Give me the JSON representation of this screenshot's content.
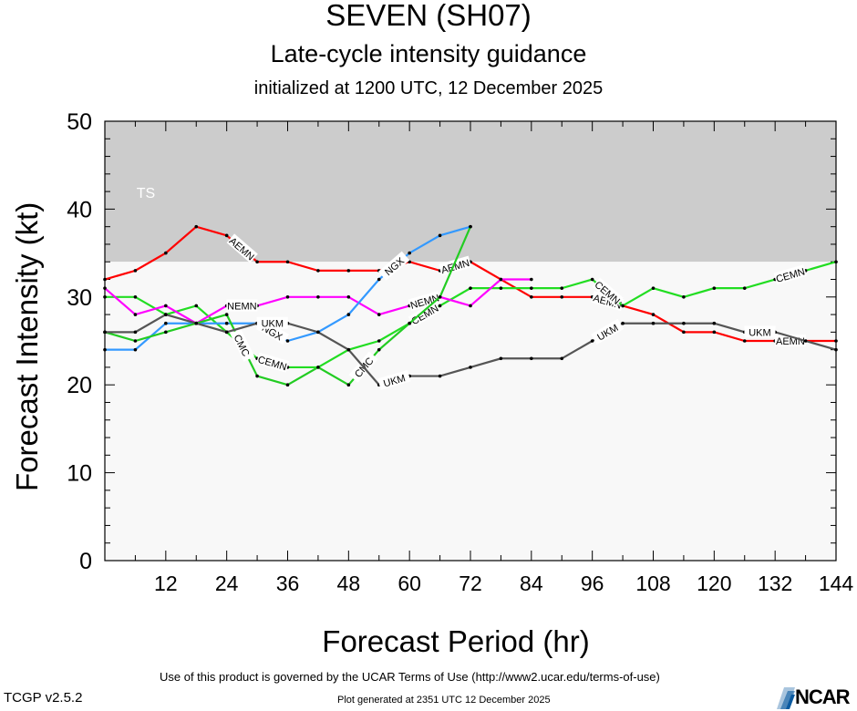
{
  "header": {
    "title": "SEVEN (SH07)",
    "subtitle": "Late-cycle intensity guidance",
    "initialized": "initialized at 1200 UTC, 12 December 2025"
  },
  "footer": {
    "terms": "Use of this product is governed by the UCAR Terms of Use (http://www2.ucar.edu/terms-of-use)",
    "version": "TCGP v2.5.2",
    "generated": "Plot generated at 2351 UTC   12 December 2025",
    "logo_text": "NCAR"
  },
  "chart_data": {
    "type": "line",
    "xlabel": "Forecast Period (hr)",
    "ylabel": "Forecast Intensity (kt)",
    "xlim": [
      0,
      144
    ],
    "ylim": [
      0,
      50
    ],
    "xticks": [
      12,
      24,
      36,
      48,
      60,
      72,
      84,
      96,
      108,
      120,
      132,
      144
    ],
    "yticks": [
      0,
      10,
      20,
      30,
      40,
      50
    ],
    "bands": [
      {
        "label": "TS",
        "from": 34,
        "to": 50,
        "color": "#cccccc"
      },
      {
        "label": "",
        "from": 0,
        "to": 34,
        "color": "#f8f8f8"
      }
    ],
    "series": [
      {
        "name": "AEMN",
        "color": "#ff0000",
        "x": [
          0,
          6,
          12,
          18,
          24,
          30,
          36,
          42,
          48,
          54,
          60,
          66,
          72,
          78,
          84,
          90,
          96,
          102,
          108,
          114,
          120,
          126,
          132,
          138,
          144
        ],
        "y": [
          32,
          33,
          35,
          38,
          37,
          34,
          34,
          33,
          33,
          33,
          34,
          33,
          34,
          32,
          30,
          30,
          30,
          29,
          28,
          26,
          26,
          25,
          25,
          25,
          25
        ],
        "labels_at": [
          24,
          66,
          96,
          132
        ]
      },
      {
        "name": "CEMN",
        "color": "#22dd22",
        "x": [
          0,
          6,
          12,
          18,
          24,
          30,
          36,
          42,
          48,
          54,
          60,
          66,
          72,
          78,
          84,
          90,
          96,
          102,
          108,
          114,
          120,
          126,
          132,
          138,
          144
        ],
        "y": [
          30,
          30,
          28,
          29,
          26,
          23,
          22,
          22,
          24,
          25,
          27,
          29,
          31,
          31,
          31,
          31,
          32,
          29,
          31,
          30,
          31,
          31,
          32,
          33,
          34
        ],
        "labels_at": [
          30,
          60,
          96,
          132
        ]
      },
      {
        "name": "NEMN",
        "color": "#ff00ff",
        "x": [
          0,
          6,
          12,
          18,
          24,
          30,
          36,
          42,
          48,
          54,
          60,
          66,
          72,
          78,
          84
        ],
        "y": [
          31,
          28,
          29,
          27,
          29,
          29,
          30,
          30,
          30,
          28,
          29,
          30,
          29,
          32,
          32
        ],
        "labels_at": [
          24,
          60
        ]
      },
      {
        "name": "NGX",
        "color": "#3399ff",
        "x": [
          0,
          6,
          12,
          18,
          24,
          30,
          36,
          42,
          48,
          54,
          60,
          66,
          72
        ],
        "y": [
          24,
          24,
          27,
          27,
          27,
          27,
          25,
          26,
          28,
          32,
          35,
          37,
          38
        ],
        "labels_at": [
          30,
          54
        ]
      },
      {
        "name": "CMC",
        "color": "#22cc22",
        "x": [
          0,
          6,
          12,
          18,
          24,
          30,
          36,
          42,
          48,
          54,
          60,
          66,
          72
        ],
        "y": [
          26,
          25,
          26,
          27,
          28,
          21,
          20,
          22,
          20,
          24,
          27,
          30,
          38
        ],
        "labels_at": [
          24,
          48
        ]
      },
      {
        "name": "UKM",
        "color": "#555555",
        "x": [
          0,
          6,
          12,
          18,
          24,
          30,
          36,
          42,
          48,
          54,
          60,
          66,
          72,
          78,
          84,
          90,
          96,
          102,
          108,
          114,
          120,
          126,
          132,
          138,
          144
        ],
        "y": [
          26,
          26,
          28,
          27,
          26,
          27,
          27,
          26,
          24,
          20,
          21,
          21,
          22,
          23,
          23,
          23,
          25,
          27,
          27,
          27,
          27,
          26,
          26,
          25,
          24
        ],
        "labels_at": [
          30,
          54,
          96,
          126
        ]
      }
    ]
  }
}
